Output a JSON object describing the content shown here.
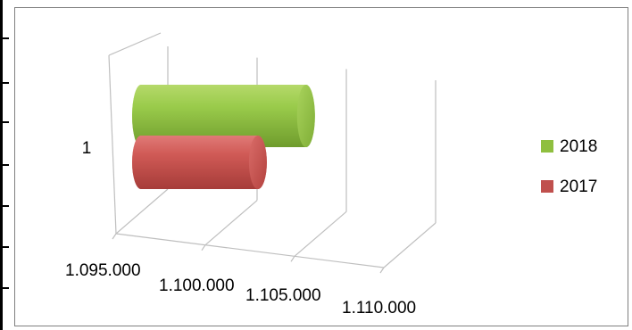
{
  "chart_data": {
    "type": "bar",
    "orientation": "horizontal",
    "style": "3d-cylinder",
    "categories": [
      "1"
    ],
    "series": [
      {
        "name": "2018",
        "color": "#8fbf3f",
        "values": [
          1107000
        ]
      },
      {
        "name": "2017",
        "color": "#c0504d",
        "values": [
          1103500
        ]
      }
    ],
    "x_ticks": [
      "1.095.000",
      "1.100.000",
      "1.105.000",
      "1.110.000"
    ],
    "xlim": [
      1095000,
      1110000
    ],
    "grid": true,
    "legend": {
      "position": "right",
      "items": [
        "2018",
        "2017"
      ]
    }
  }
}
